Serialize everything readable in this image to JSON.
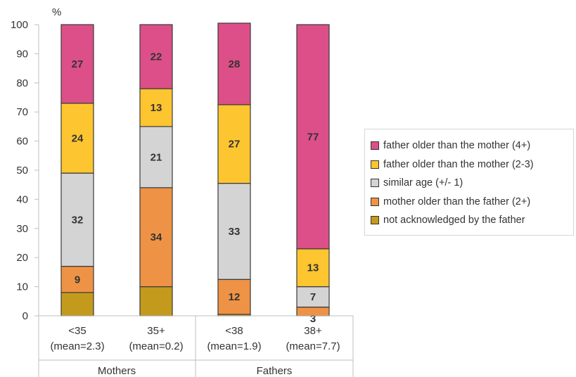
{
  "chart_data": {
    "type": "bar",
    "stacked": true,
    "y_unit_label": "%",
    "ylim": [
      0,
      100
    ],
    "yticks": [
      0,
      10,
      20,
      30,
      40,
      50,
      60,
      70,
      80,
      90,
      100
    ],
    "grid": false,
    "legend_position": "right",
    "categories": [
      "<35",
      "35+",
      "<38",
      "38+"
    ],
    "category_sublabels": [
      "(mean=2.3)",
      "(mean=0.2)",
      "(mean=1.9)",
      "(mean=7.7)"
    ],
    "groups": [
      {
        "name": "Mothers",
        "categories": [
          "<35",
          "35+"
        ]
      },
      {
        "name": "Fathers",
        "categories": [
          "<38",
          "38+"
        ]
      }
    ],
    "series": [
      {
        "name": "not acknowledged by the father",
        "color": "#c49a1c",
        "values": [
          8,
          10,
          0.5,
          0
        ],
        "labels": [
          "",
          "",
          "",
          ""
        ]
      },
      {
        "name": "mother older than the father (2+)",
        "color": "#ee9346",
        "values": [
          9,
          34,
          12,
          3
        ],
        "labels": [
          "9",
          "34",
          "12",
          "3"
        ]
      },
      {
        "name": "similar age (+/- 1)",
        "color": "#d4d4d4",
        "values": [
          32,
          21,
          33,
          7
        ],
        "labels": [
          "32",
          "21",
          "33",
          "7"
        ]
      },
      {
        "name": "father older than the mother (2-3)",
        "color": "#fdc52f",
        "values": [
          24,
          13,
          27,
          13
        ],
        "labels": [
          "24",
          "13",
          "27",
          "13"
        ]
      },
      {
        "name": "father older than the mother (4+)",
        "color": "#dc4f88",
        "values": [
          27,
          22,
          28,
          77
        ],
        "labels": [
          "27",
          "22",
          "28",
          "77"
        ]
      }
    ]
  }
}
